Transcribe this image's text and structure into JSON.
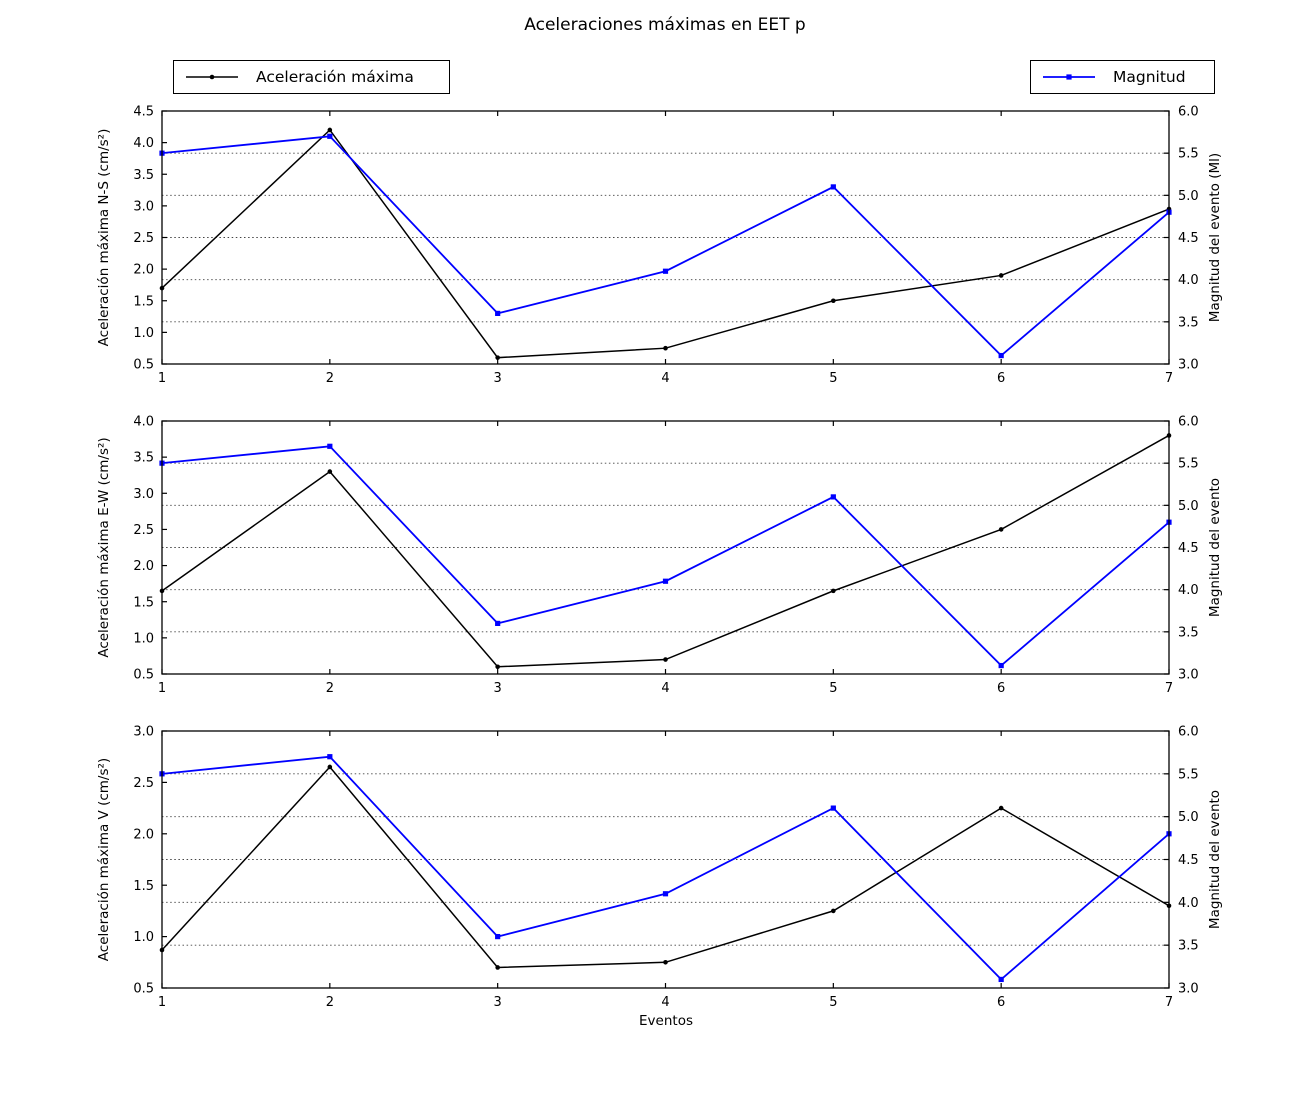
{
  "title": "Aceleraciones máximas en EET p",
  "xlabel": "Eventos",
  "legend_left": {
    "label": "Aceleración máxima",
    "marker": "circle"
  },
  "legend_right": {
    "label": "Magnitud",
    "marker": "square"
  },
  "colors": {
    "acceleration": "#000000",
    "magnitude": "#0000ff",
    "frame": "#000000",
    "grid": "#444444",
    "background": "#ffffff"
  },
  "chart_data": [
    {
      "type": "line",
      "title": "",
      "x": [
        1,
        2,
        3,
        4,
        5,
        6,
        7
      ],
      "xlim": [
        1,
        7
      ],
      "xticks": [
        1,
        2,
        3,
        4,
        5,
        6,
        7
      ],
      "grid": "horizontal dotted at right-axis ticks",
      "left_axis": {
        "label": "Aceleración máxima N-S (cm/s²)",
        "lim": [
          0.5,
          4.5
        ],
        "tick_step": 0.5
      },
      "right_axis": {
        "label": "Magnitud del evento (Ml)",
        "lim": [
          3.0,
          6.0
        ],
        "tick_step": 0.5
      },
      "series": [
        {
          "name": "Aceleración máxima",
          "axis": "left",
          "color": "#000000",
          "marker": "circle",
          "values": [
            1.7,
            4.2,
            0.6,
            0.75,
            1.5,
            1.9,
            2.95
          ]
        },
        {
          "name": "Magnitud",
          "axis": "right",
          "color": "#0000ff",
          "marker": "square",
          "values": [
            5.5,
            5.7,
            3.6,
            4.1,
            5.1,
            3.1,
            4.8
          ]
        }
      ]
    },
    {
      "type": "line",
      "title": "",
      "x": [
        1,
        2,
        3,
        4,
        5,
        6,
        7
      ],
      "xlim": [
        1,
        7
      ],
      "xticks": [
        1,
        2,
        3,
        4,
        5,
        6,
        7
      ],
      "grid": "horizontal dotted at right-axis ticks",
      "left_axis": {
        "label": "Aceleración máxima E-W (cm/s²)",
        "lim": [
          0.5,
          4.0
        ],
        "tick_step": 0.5
      },
      "right_axis": {
        "label": "Magnitud del evento",
        "lim": [
          3.0,
          6.0
        ],
        "tick_step": 0.5
      },
      "series": [
        {
          "name": "Aceleración máxima",
          "axis": "left",
          "color": "#000000",
          "marker": "circle",
          "values": [
            1.65,
            3.3,
            0.6,
            0.7,
            1.65,
            2.5,
            3.8
          ]
        },
        {
          "name": "Magnitud",
          "axis": "right",
          "color": "#0000ff",
          "marker": "square",
          "values": [
            5.5,
            5.7,
            3.6,
            4.1,
            5.1,
            3.1,
            4.8
          ]
        }
      ]
    },
    {
      "type": "line",
      "title": "",
      "x": [
        1,
        2,
        3,
        4,
        5,
        6,
        7
      ],
      "xlim": [
        1,
        7
      ],
      "xticks": [
        1,
        2,
        3,
        4,
        5,
        6,
        7
      ],
      "grid": "horizontal dotted at right-axis ticks",
      "left_axis": {
        "label": "Aceleración máxima V (cm/s²)",
        "lim": [
          0.5,
          3.0
        ],
        "tick_step": 0.5
      },
      "right_axis": {
        "label": "Magnitud del evento",
        "lim": [
          3.0,
          6.0
        ],
        "tick_step": 0.5
      },
      "series": [
        {
          "name": "Aceleración máxima",
          "axis": "left",
          "color": "#000000",
          "marker": "circle",
          "values": [
            0.87,
            2.65,
            0.7,
            0.75,
            1.25,
            2.25,
            1.3
          ]
        },
        {
          "name": "Magnitud",
          "axis": "right",
          "color": "#0000ff",
          "marker": "square",
          "values": [
            5.5,
            5.7,
            3.6,
            4.1,
            5.1,
            3.1,
            4.8
          ]
        }
      ]
    }
  ]
}
